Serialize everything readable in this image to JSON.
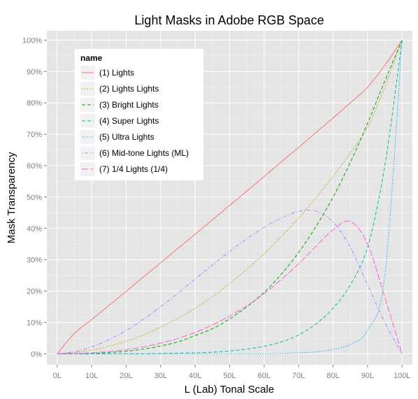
{
  "chart_data": {
    "type": "line",
    "title": "Light Masks in Adobe RGB Space",
    "xlabel": "L (Lab) Tonal Scale",
    "ylabel": "Mask Transparency",
    "x": [
      0,
      5,
      10,
      15,
      20,
      25,
      30,
      35,
      40,
      45,
      50,
      55,
      60,
      65,
      70,
      75,
      80,
      85,
      90,
      95,
      100
    ],
    "x_tick_labels": [
      "0L",
      "10L",
      "20L",
      "30L",
      "40L",
      "50L",
      "60L",
      "70L",
      "80L",
      "90L",
      "100L"
    ],
    "x_ticks": [
      0,
      10,
      20,
      30,
      40,
      50,
      60,
      70,
      80,
      90,
      100
    ],
    "xlim": [
      -3,
      103
    ],
    "y_tick_labels": [
      "0%",
      "10%",
      "20%",
      "30%",
      "40%",
      "50%",
      "60%",
      "70%",
      "80%",
      "90%",
      "100%"
    ],
    "y_ticks": [
      0,
      10,
      20,
      30,
      40,
      50,
      60,
      70,
      80,
      90,
      100
    ],
    "ylim": [
      -3.5,
      103
    ],
    "grid": true,
    "legend_title": "name",
    "legend_position": "top-left",
    "series": [
      {
        "name": "(1) Lights",
        "color": "#F8766D",
        "dash": "solid",
        "values": [
          0,
          6.5,
          10.9,
          15.4,
          19.9,
          24.5,
          29.0,
          33.6,
          38.1,
          42.7,
          47.3,
          51.9,
          56.5,
          61.2,
          65.8,
          70.5,
          75.2,
          80.0,
          85.0,
          92.0,
          100
        ]
      },
      {
        "name": "(2) Lights Lights",
        "color": "#C49A00",
        "dash": "dotted",
        "values": [
          0,
          0.4,
          1.2,
          2.4,
          4.0,
          6.0,
          8.5,
          11.3,
          14.5,
          18.2,
          22.4,
          27.0,
          31.9,
          37.4,
          43.3,
          49.7,
          56.6,
          64.0,
          72.2,
          85.0,
          100
        ]
      },
      {
        "name": "(3) Bright Lights",
        "color": "#00A800",
        "dash": "dashed",
        "values": [
          0,
          0.0,
          0.1,
          0.4,
          0.8,
          1.5,
          2.5,
          3.8,
          5.8,
          8.0,
          11.1,
          15.0,
          19.6,
          25.4,
          32.3,
          40.5,
          50.0,
          61.0,
          73.5,
          87.0,
          100
        ]
      },
      {
        "name": "(4) Super Lights",
        "color": "#00C094",
        "dash": "dashed",
        "values": [
          0,
          0.0,
          0.0,
          0.0,
          0.0,
          0.0,
          0.1,
          0.2,
          0.3,
          0.5,
          0.9,
          1.5,
          2.4,
          3.8,
          6.0,
          9.5,
          14.5,
          22.0,
          34.0,
          60.0,
          100
        ]
      },
      {
        "name": "(5) Ultra Lights",
        "color": "#00B6EB",
        "dash": "dotted",
        "values": [
          0,
          0.0,
          0.0,
          0.0,
          0.0,
          0.0,
          0.0,
          0.0,
          0.0,
          0.0,
          0.0,
          0.0,
          0.0,
          0.1,
          0.3,
          0.6,
          1.4,
          3.0,
          7.5,
          25.0,
          100
        ]
      },
      {
        "name": "(6) Mid-tone Lights (ML)",
        "color": "#A58AFF",
        "dash": "dotdash",
        "values": [
          0,
          0.7,
          2.2,
          4.5,
          7.4,
          11.0,
          15.0,
          19.3,
          23.8,
          28.3,
          32.6,
          36.7,
          40.3,
          43.3,
          45.4,
          45.5,
          42.0,
          34.0,
          22.0,
          10.0,
          0
        ]
      },
      {
        "name": "(7) 1/4 Lights (1/4)",
        "color": "#FB61D7",
        "dash": "longdash",
        "values": [
          0,
          0.1,
          0.3,
          0.7,
          1.3,
          2.2,
          3.4,
          4.9,
          6.8,
          9.2,
          12.0,
          15.3,
          19.2,
          23.7,
          28.7,
          34.2,
          39.5,
          42.2,
          35.0,
          18.0,
          0
        ]
      }
    ]
  }
}
